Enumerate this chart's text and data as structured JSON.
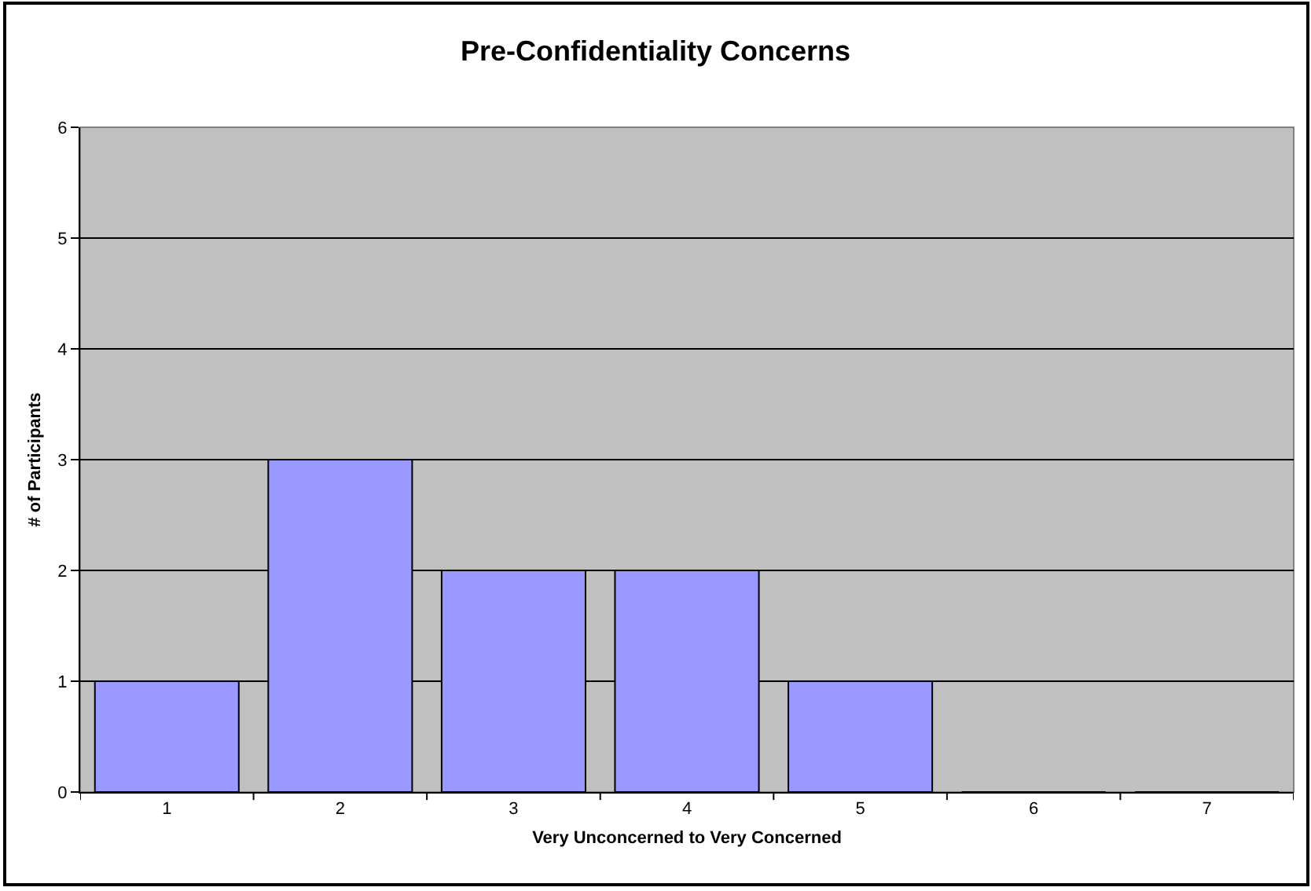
{
  "chart_data": {
    "type": "bar",
    "title": "Pre-Confidentiality Concerns",
    "xlabel": "Very Unconcerned to Very Concerned",
    "ylabel": "# of Participants",
    "categories": [
      "1",
      "2",
      "3",
      "4",
      "5",
      "6",
      "7"
    ],
    "values": [
      1,
      3,
      2,
      2,
      1,
      0,
      0
    ],
    "color": "#9999ff",
    "ylim": [
      0,
      6
    ],
    "yticks": [
      0,
      1,
      2,
      3,
      4,
      5,
      6
    ],
    "grid": "y"
  }
}
